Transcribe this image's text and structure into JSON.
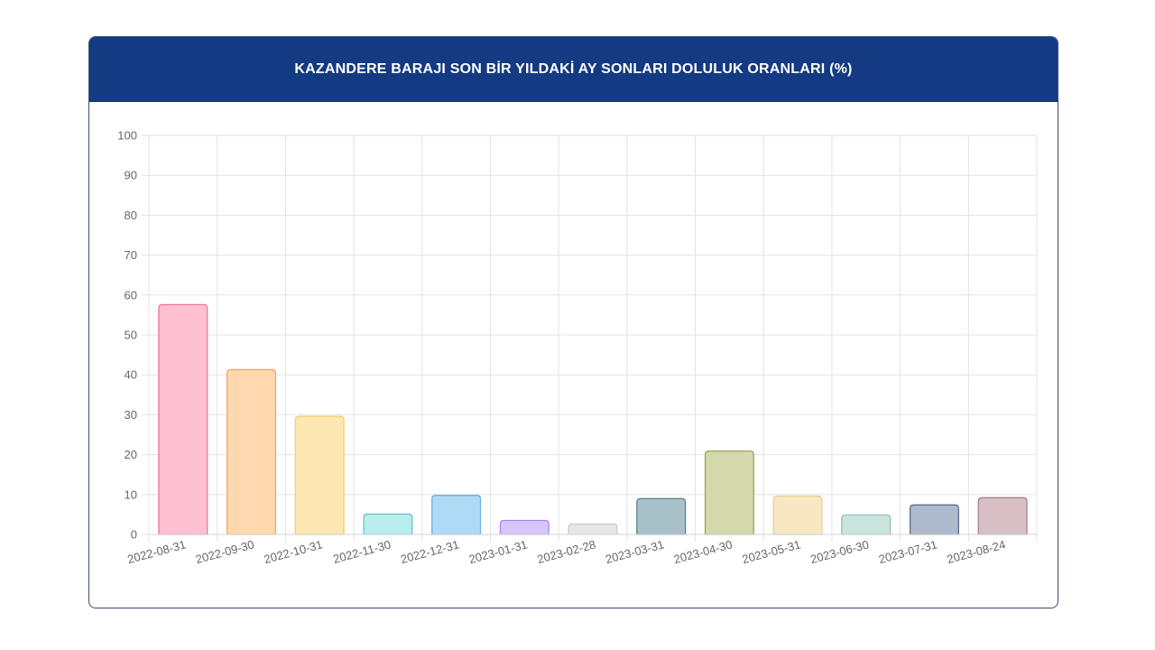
{
  "header": {
    "title": "KAZANDERE BARAJI SON BİR YILDAKİ AY SONLARI DOLULUK ORANLARI (%)",
    "background": "#133a82"
  },
  "chart_data": {
    "type": "bar",
    "title": "KAZANDERE BARAJI SON BİR YILDAKİ AY SONLARI DOLULUK ORANLARI (%)",
    "xlabel": "",
    "ylabel": "",
    "ylim": [
      0,
      100
    ],
    "yticks": [
      "0",
      "10",
      "20",
      "30",
      "40",
      "50",
      "60",
      "70",
      "80",
      "90",
      "100"
    ],
    "grid": true,
    "legend": "none",
    "categories": [
      "2022-08-31",
      "2022-09-30",
      "2022-10-31",
      "2022-11-30",
      "2022-12-31",
      "2023-01-31",
      "2023-02-28",
      "2023-03-31",
      "2023-04-30",
      "2023-05-31",
      "2023-06-30",
      "2023-07-31",
      "2023-08-24"
    ],
    "values": [
      57.6,
      41.3,
      29.6,
      5.1,
      9.8,
      3.5,
      2.6,
      9.0,
      20.9,
      9.6,
      4.9,
      7.4,
      9.2
    ],
    "fill_colors": [
      "#ffc1d2",
      "#ffd8b0",
      "#fde7b3",
      "#b9ecec",
      "#aedaf6",
      "#d6c6fb",
      "#e7e7e9",
      "#a9c2ca",
      "#d4d9ac",
      "#f8e7c3",
      "#c9e5de",
      "#aebacd",
      "#d8bfc6"
    ],
    "border_colors": [
      "#f2748f",
      "#f5a75c",
      "#f6cc6a",
      "#67c7c7",
      "#67b4e9",
      "#a985f5",
      "#c7c9cc",
      "#5c7f8c",
      "#9ea55a",
      "#ecd08f",
      "#8fc4b8",
      "#5e6e8e",
      "#a57f8c"
    ]
  }
}
